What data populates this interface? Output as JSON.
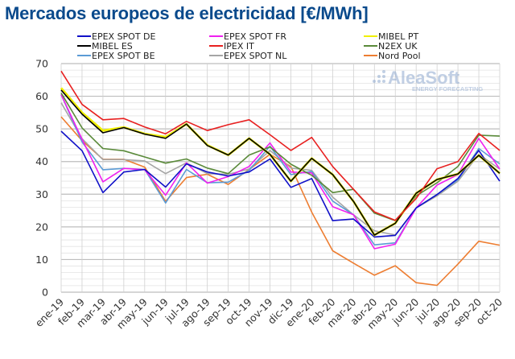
{
  "chart_data": {
    "type": "line",
    "title": "Mercados europeos de electricidad [€/MWh]",
    "xlabel": "",
    "ylabel": "",
    "ylim": [
      0,
      70
    ],
    "yticks": [
      0,
      10,
      20,
      30,
      40,
      50,
      60,
      70
    ],
    "grid": true,
    "legend_position": "top",
    "watermark": {
      "brand": "AleaSoft",
      "tagline": "ENERGY FORECASTING"
    },
    "categories": [
      "ene-19",
      "feb-19",
      "mar-19",
      "abr-19",
      "may-19",
      "jun-19",
      "jul-19",
      "ago-19",
      "sep-19",
      "oct-19",
      "nov-19",
      "dic-19",
      "ene-20",
      "feb-20",
      "mar-20",
      "abr-20",
      "may-20",
      "jun-20",
      "jul-20",
      "ago-20",
      "sep-20",
      "oct-20"
    ],
    "series": [
      {
        "name": "EPEX SPOT DE",
        "color": "#1010c8",
        "values": [
          49.3,
          43.3,
          30.5,
          36.8,
          37.6,
          32.2,
          39.3,
          36.8,
          35.6,
          36.8,
          40.8,
          32.1,
          34.8,
          21.9,
          22.4,
          16.9,
          17.4,
          25.8,
          29.9,
          34.8,
          43.4,
          34.0
        ]
      },
      {
        "name": "EPEX SPOT FR",
        "color": "#f020f0",
        "values": [
          60.5,
          46.8,
          33.8,
          37.9,
          37.5,
          29.7,
          39.6,
          33.4,
          35.4,
          38.5,
          45.7,
          36.8,
          36.5,
          26.2,
          23.7,
          13.3,
          14.7,
          25.8,
          32.8,
          36.0,
          47.1,
          37.7
        ]
      },
      {
        "name": "MIBEL PT",
        "color": "#f0f000",
        "values": [
          62.5,
          55.0,
          49.5,
          50.5,
          48.5,
          47.5,
          51.5,
          45.0,
          42.0,
          47.1,
          42.2,
          34.0,
          41.0,
          36.0,
          27.8,
          17.5,
          21.1,
          30.3,
          34.5,
          36.2,
          41.9,
          36.4
        ]
      },
      {
        "name": "MIBEL ES",
        "color": "#000000",
        "values": [
          61.9,
          54.5,
          48.8,
          50.4,
          48.4,
          47.1,
          51.5,
          44.9,
          42.0,
          47.1,
          42.2,
          34.0,
          41.0,
          36.0,
          27.8,
          17.5,
          21.1,
          30.3,
          34.5,
          36.2,
          41.9,
          36.4
        ]
      },
      {
        "name": "IPEX IT",
        "color": "#e82020",
        "values": [
          67.7,
          57.5,
          52.8,
          53.2,
          50.6,
          48.5,
          52.3,
          49.5,
          51.3,
          52.8,
          48.2,
          43.4,
          47.4,
          38.5,
          31.5,
          24.6,
          22.0,
          28.7,
          37.8,
          40.0,
          48.6,
          43.4
        ]
      },
      {
        "name": "N2EX UK",
        "color": "#5a8a3a",
        "values": [
          61.0,
          50.3,
          44.0,
          43.3,
          41.4,
          39.5,
          40.8,
          38.0,
          36.3,
          42.0,
          44.5,
          39.2,
          35.8,
          30.5,
          31.5,
          24.2,
          21.9,
          29.5,
          33.5,
          38.5,
          48.1,
          47.8
        ]
      },
      {
        "name": "EPEX SPOT BE",
        "color": "#5b9bd5",
        "values": [
          60.5,
          46.0,
          37.5,
          37.9,
          37.6,
          27.3,
          37.6,
          33.5,
          33.7,
          37.3,
          44.7,
          36.0,
          37.0,
          27.9,
          23.7,
          14.5,
          15.1,
          25.8,
          29.9,
          34.4,
          44.0,
          39.3
        ]
      },
      {
        "name": "EPEX SPOT NL",
        "color": "#a5a5a5",
        "values": [
          58.0,
          47.0,
          40.6,
          40.6,
          40.2,
          36.3,
          39.6,
          36.3,
          36.1,
          37.7,
          43.4,
          38.0,
          37.3,
          29.1,
          23.7,
          18.8,
          17.5,
          25.8,
          29.5,
          34.0,
          42.2,
          37.7
        ]
      },
      {
        "name": "Nord Pool",
        "color": "#ed7d31",
        "values": [
          53.7,
          46.4,
          40.7,
          40.7,
          38.3,
          27.8,
          35.1,
          36.1,
          33.0,
          37.6,
          42.2,
          38.5,
          24.5,
          12.7,
          8.9,
          5.2,
          8.1,
          2.9,
          2.1,
          8.6,
          15.6,
          14.4
        ]
      }
    ]
  }
}
